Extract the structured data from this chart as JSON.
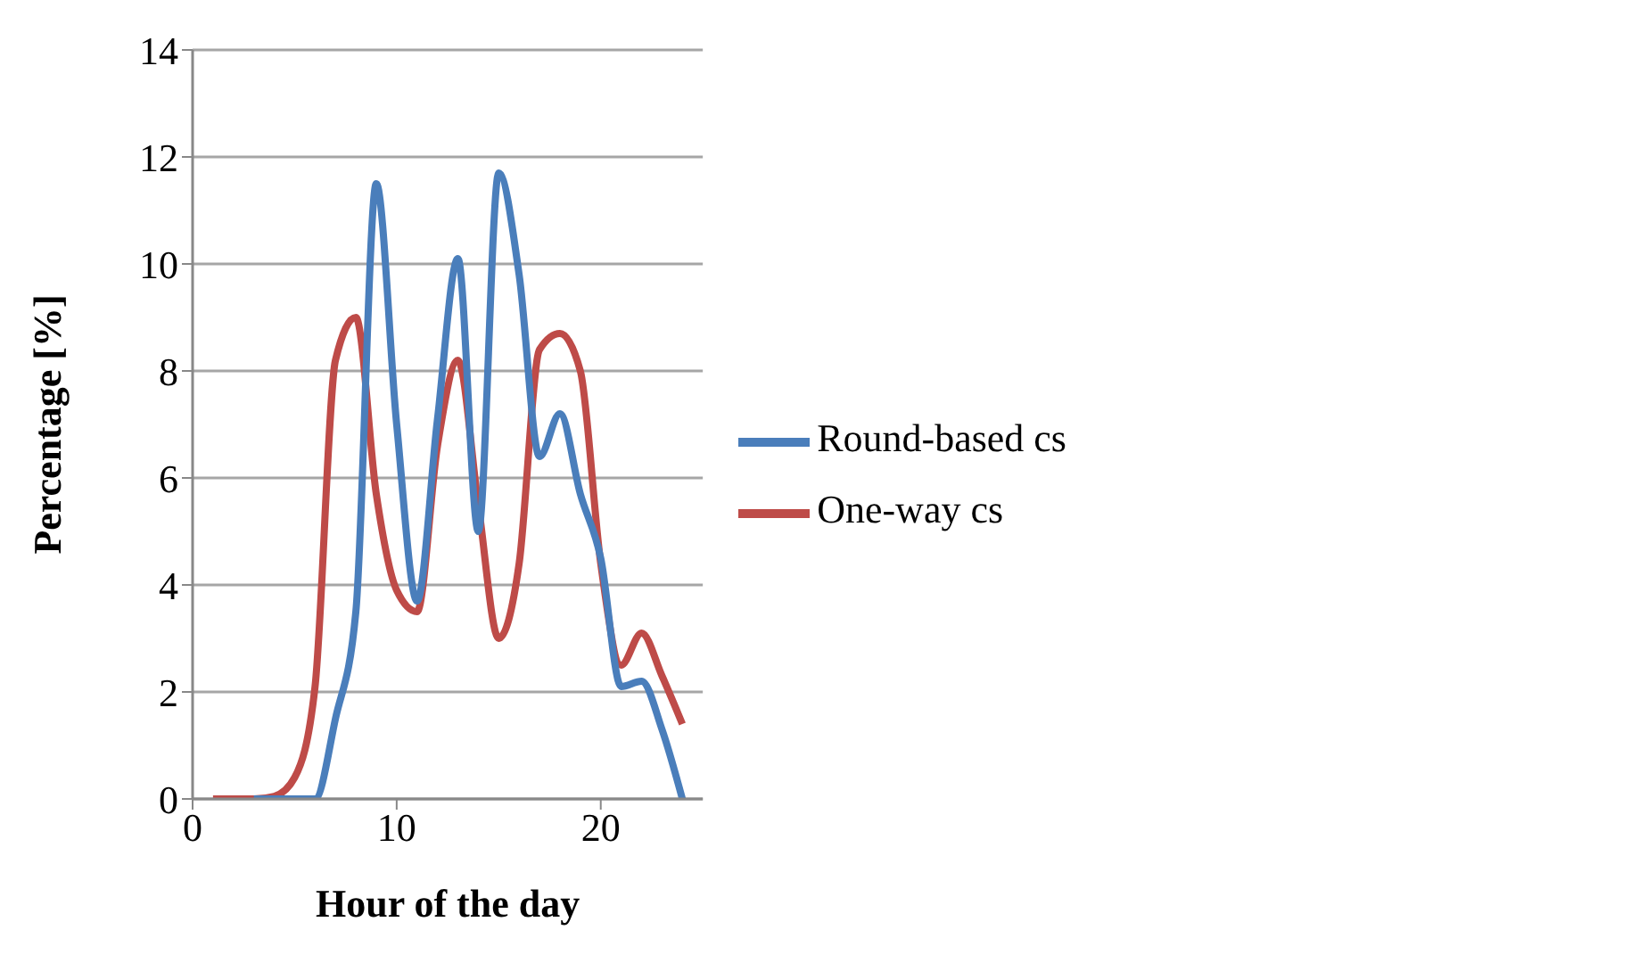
{
  "chart_data": {
    "type": "line",
    "xlabel": "Hour of the day",
    "ylabel": "Percentage [%]",
    "x": [
      1,
      2,
      3,
      4,
      5,
      6,
      7,
      8,
      9,
      10,
      11,
      12,
      13,
      14,
      15,
      16,
      17,
      18,
      19,
      20,
      21,
      22,
      23,
      24
    ],
    "series": [
      {
        "name": "Round-based cs",
        "color": "#4a7ebb",
        "values": [
          null,
          null,
          0,
          0,
          0,
          0,
          1.5,
          3.5,
          11.5,
          7,
          3.7,
          7.1,
          10.1,
          5,
          11.7,
          9.8,
          6.4,
          7.2,
          5.7,
          4.5,
          2.1,
          2.2,
          1.3,
          0
        ]
      },
      {
        "name": "One-way cs",
        "color": "#be4b48",
        "values": [
          0,
          0,
          0,
          0.05,
          0.4,
          2.1,
          8.2,
          9,
          5.7,
          3.9,
          3.5,
          6.6,
          8.2,
          5.5,
          3,
          4.4,
          8.4,
          8.7,
          8,
          4.4,
          2.5,
          3.1,
          2.3,
          1.4
        ]
      }
    ],
    "xlim": [
      0,
      25
    ],
    "xticks": [
      0,
      10,
      20
    ],
    "ylim": [
      0,
      14
    ],
    "yticks": [
      0,
      2,
      4,
      6,
      8,
      10,
      12,
      14
    ],
    "grid": "y",
    "legend": "right",
    "marker": "none",
    "line_style": "solid"
  }
}
